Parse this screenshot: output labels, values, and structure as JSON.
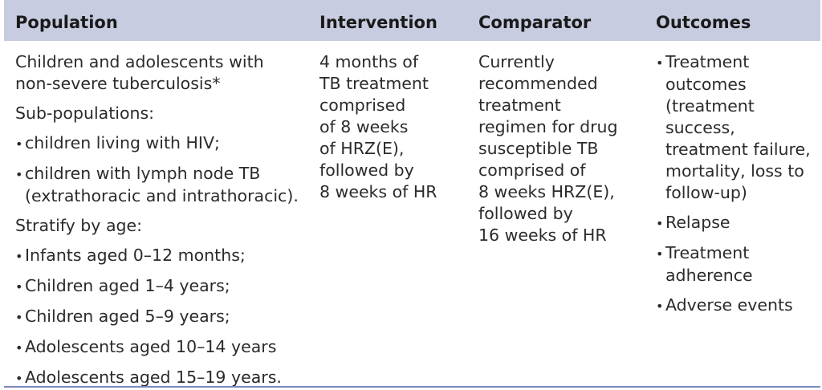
{
  "headers": {
    "population": "Population",
    "intervention": "Intervention",
    "comparator": "Comparator",
    "outcomes": "Outcomes"
  },
  "population": {
    "intro": [
      "Children and adolescents with",
      "non-severe tuberculosis*"
    ],
    "sub_title": "Sub-populations:",
    "sub_items": [
      [
        "children living with HIV;"
      ],
      [
        "children with lymph node TB",
        "(extrathoracic and intrathoracic)."
      ]
    ],
    "stratify_title": "Stratify by age:",
    "age_items": [
      "Infants aged 0–12 months;",
      "Children aged 1–4 years;",
      "Children aged 5–9 years;",
      "Adolescents aged 10–14 years",
      "Adolescents aged 15–19 years."
    ]
  },
  "intervention": [
    "4 months of",
    "TB treatment",
    "comprised",
    "of 8 weeks",
    "of HRZ(E),",
    "followed by",
    "8 weeks of HR"
  ],
  "comparator": [
    "Currently",
    "recommended",
    "treatment",
    "regimen for drug",
    "susceptible TB",
    "comprised of",
    "8 weeks HRZ(E),",
    "followed by",
    "16 weeks of HR"
  ],
  "outcomes": [
    [
      "Treatment",
      "outcomes",
      "(treatment",
      "success,",
      "treatment failure,",
      "mortality, loss to",
      "follow-up)"
    ],
    [
      "Relapse"
    ],
    [
      "Treatment",
      "adherence"
    ],
    [
      "Adverse events"
    ]
  ]
}
